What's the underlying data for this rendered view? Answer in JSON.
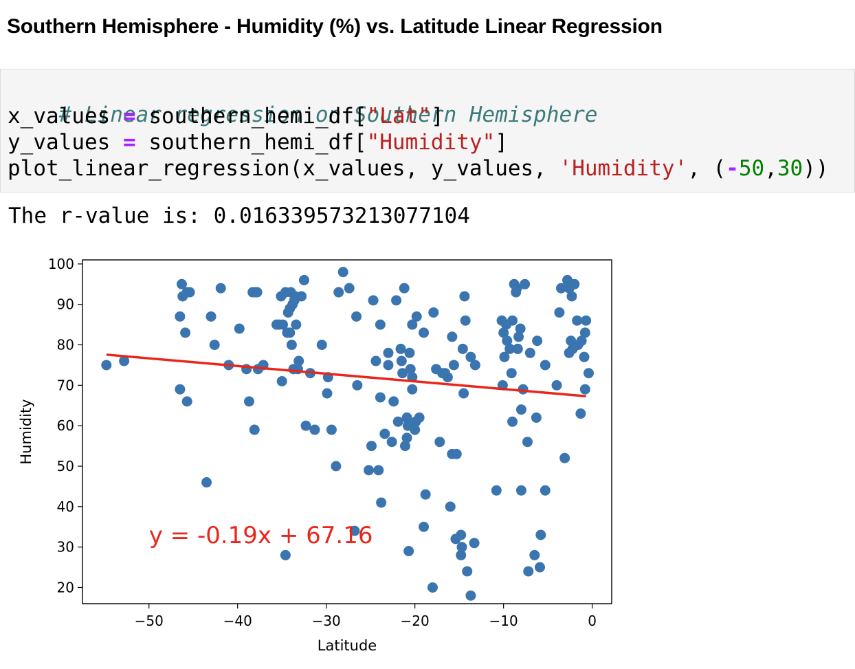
{
  "heading": "Southern Hemisphere - Humidity (%) vs. Latitude Linear Regression",
  "code": {
    "comment": "# Linear regression on Southern Hemisphere",
    "line2": {
      "var": "x_values ",
      "op": "=",
      "mid": " southern_hemi_df[",
      "str": "\"Lat\"",
      "end": "]"
    },
    "line3": {
      "var": "y_values ",
      "op": "=",
      "mid": " southern_hemi_df[",
      "str": "\"Humidity\"",
      "end": "]"
    },
    "line4": {
      "start": "plot_linear_regression(x_values, y_values, ",
      "str": "'Humidity'",
      "mid": ", (",
      "neg": "-",
      "num1": "50",
      "comma": ",",
      "num2": "30",
      "end": "))"
    }
  },
  "output": "The r-value is: 0.016339573213077104",
  "colors": {
    "points": "#3a75af",
    "regression_line": "#e8261c",
    "equation_text": "#e8261c",
    "comment": "#3b7b7a",
    "string": "#ba2121",
    "operator": "#aa22ff",
    "number": "#008000"
  },
  "chart_data": {
    "type": "scatter",
    "title": "",
    "xlabel": "Latitude",
    "ylabel": "Humidity",
    "xlim": [
      -57.5,
      2.2
    ],
    "ylim": [
      16,
      101
    ],
    "xticks": [
      -50,
      -40,
      -30,
      -20,
      -10,
      0
    ],
    "yticks": [
      20,
      30,
      40,
      50,
      60,
      70,
      80,
      90,
      100
    ],
    "grid": false,
    "annotation": {
      "text": "y = -0.19x + 67.16",
      "x": -50,
      "y": 31
    },
    "regression": {
      "slope": -0.19,
      "intercept": 67.16,
      "x_range": [
        -54.8,
        -0.7
      ]
    },
    "points": [
      [
        -54.8,
        75
      ],
      [
        -52.8,
        76
      ],
      [
        -46.3,
        95
      ],
      [
        -46.2,
        92
      ],
      [
        -45.7,
        93
      ],
      [
        -45.4,
        93
      ],
      [
        -46.5,
        87
      ],
      [
        -45.9,
        83
      ],
      [
        -46.5,
        69
      ],
      [
        -45.7,
        66
      ],
      [
        -43.0,
        87
      ],
      [
        -42.6,
        80
      ],
      [
        -41.9,
        94
      ],
      [
        -41.0,
        75
      ],
      [
        -39.8,
        84
      ],
      [
        -39.0,
        74
      ],
      [
        -38.7,
        66
      ],
      [
        -38.3,
        93
      ],
      [
        -38.0,
        93
      ],
      [
        -37.8,
        93
      ],
      [
        -38.1,
        59
      ],
      [
        -37.7,
        74
      ],
      [
        -37.1,
        75
      ],
      [
        -43.5,
        46
      ],
      [
        -35.6,
        85
      ],
      [
        -35.3,
        85
      ],
      [
        -35.0,
        71
      ],
      [
        -35.1,
        92
      ],
      [
        -34.9,
        85
      ],
      [
        -34.6,
        93
      ],
      [
        -34.3,
        88
      ],
      [
        -34.0,
        93
      ],
      [
        -33.8,
        90
      ],
      [
        -34.1,
        89
      ],
      [
        -33.6,
        91
      ],
      [
        -33.5,
        92
      ],
      [
        -34.4,
        83
      ],
      [
        -34.1,
        83
      ],
      [
        -33.4,
        85
      ],
      [
        -33.9,
        80
      ],
      [
        -33.7,
        74
      ],
      [
        -33.2,
        74
      ],
      [
        -33.1,
        76
      ],
      [
        -32.8,
        92
      ],
      [
        -32.5,
        96
      ],
      [
        -32.3,
        60
      ],
      [
        -31.8,
        73
      ],
      [
        -31.3,
        59
      ],
      [
        -30.5,
        80
      ],
      [
        -29.9,
        68
      ],
      [
        -29.8,
        72
      ],
      [
        -29.4,
        59
      ],
      [
        -28.9,
        50
      ],
      [
        -28.6,
        93
      ],
      [
        -28.1,
        98
      ],
      [
        -27.4,
        94
      ],
      [
        -26.6,
        87
      ],
      [
        -26.5,
        70
      ],
      [
        -26.8,
        34
      ],
      [
        -34.6,
        28
      ],
      [
        -25.2,
        49
      ],
      [
        -24.9,
        55
      ],
      [
        -24.7,
        91
      ],
      [
        -24.4,
        76
      ],
      [
        -24.1,
        49
      ],
      [
        -23.9,
        67
      ],
      [
        -23.9,
        85
      ],
      [
        -23.8,
        41
      ],
      [
        -23.4,
        58
      ],
      [
        -23.0,
        75
      ],
      [
        -23.0,
        78
      ],
      [
        -22.6,
        56
      ],
      [
        -22.4,
        66
      ],
      [
        -22.1,
        91
      ],
      [
        -21.9,
        61
      ],
      [
        -21.6,
        79
      ],
      [
        -21.5,
        76
      ],
      [
        -21.2,
        94
      ],
      [
        -21.4,
        73
      ],
      [
        -21.1,
        55
      ],
      [
        -20.9,
        57
      ],
      [
        -20.9,
        62
      ],
      [
        -20.8,
        60
      ],
      [
        -20.7,
        29
      ],
      [
        -20.6,
        78
      ],
      [
        -20.5,
        74
      ],
      [
        -20.3,
        72
      ],
      [
        -20.3,
        69
      ],
      [
        -20.0,
        59
      ],
      [
        -19.9,
        61
      ],
      [
        -20.3,
        85
      ],
      [
        -19.8,
        87
      ],
      [
        -19.5,
        62
      ],
      [
        -19.0,
        83
      ],
      [
        -19.0,
        35
      ],
      [
        -18.8,
        43
      ],
      [
        -18.0,
        20
      ],
      [
        -17.9,
        88
      ],
      [
        -17.6,
        74
      ],
      [
        -17.2,
        56
      ],
      [
        -16.9,
        73
      ],
      [
        -16.6,
        73
      ],
      [
        -16.3,
        72
      ],
      [
        -16.0,
        40
      ],
      [
        -15.8,
        53
      ],
      [
        -15.8,
        82
      ],
      [
        -15.6,
        75
      ],
      [
        -15.3,
        53
      ],
      [
        -15.4,
        32
      ],
      [
        -14.8,
        28
      ],
      [
        -14.8,
        33
      ],
      [
        -14.7,
        30
      ],
      [
        -14.6,
        79
      ],
      [
        -14.5,
        68
      ],
      [
        -14.4,
        92
      ],
      [
        -14.3,
        86
      ],
      [
        -14.1,
        24
      ],
      [
        -13.7,
        18
      ],
      [
        -13.7,
        77
      ],
      [
        -13.3,
        31
      ],
      [
        -13.2,
        75
      ],
      [
        -10.8,
        44
      ],
      [
        -10.2,
        86
      ],
      [
        -10.0,
        83
      ],
      [
        -10.1,
        70
      ],
      [
        -9.9,
        77
      ],
      [
        -9.6,
        81
      ],
      [
        -9.7,
        85
      ],
      [
        -9.3,
        79
      ],
      [
        -9.1,
        73
      ],
      [
        -9.0,
        86
      ],
      [
        -9.0,
        61
      ],
      [
        -8.8,
        95
      ],
      [
        -8.6,
        93
      ],
      [
        -8.5,
        94
      ],
      [
        -8.4,
        79
      ],
      [
        -8.3,
        82
      ],
      [
        -8.1,
        84
      ],
      [
        -8.0,
        64
      ],
      [
        -8.0,
        44
      ],
      [
        -7.8,
        69
      ],
      [
        -7.6,
        95
      ],
      [
        -7.3,
        56
      ],
      [
        -7.2,
        24
      ],
      [
        -7.0,
        78
      ],
      [
        -6.5,
        28
      ],
      [
        -6.3,
        62
      ],
      [
        -6.2,
        81
      ],
      [
        -5.9,
        25
      ],
      [
        -5.8,
        33
      ],
      [
        -5.3,
        44
      ],
      [
        -5.3,
        75
      ],
      [
        -4.0,
        70
      ],
      [
        -3.7,
        88
      ],
      [
        -3.5,
        94
      ],
      [
        -3.1,
        52
      ],
      [
        -2.8,
        96
      ],
      [
        -2.6,
        94
      ],
      [
        -2.6,
        78
      ],
      [
        -2.4,
        81
      ],
      [
        -2.3,
        92
      ],
      [
        -2.2,
        79
      ],
      [
        -2.0,
        95
      ],
      [
        -1.7,
        86
      ],
      [
        -1.6,
        80
      ],
      [
        -1.3,
        63
      ],
      [
        -1.2,
        81
      ],
      [
        -0.9,
        77
      ],
      [
        -0.8,
        69
      ],
      [
        -0.7,
        86
      ],
      [
        -0.8,
        83
      ],
      [
        -0.4,
        73
      ]
    ]
  }
}
